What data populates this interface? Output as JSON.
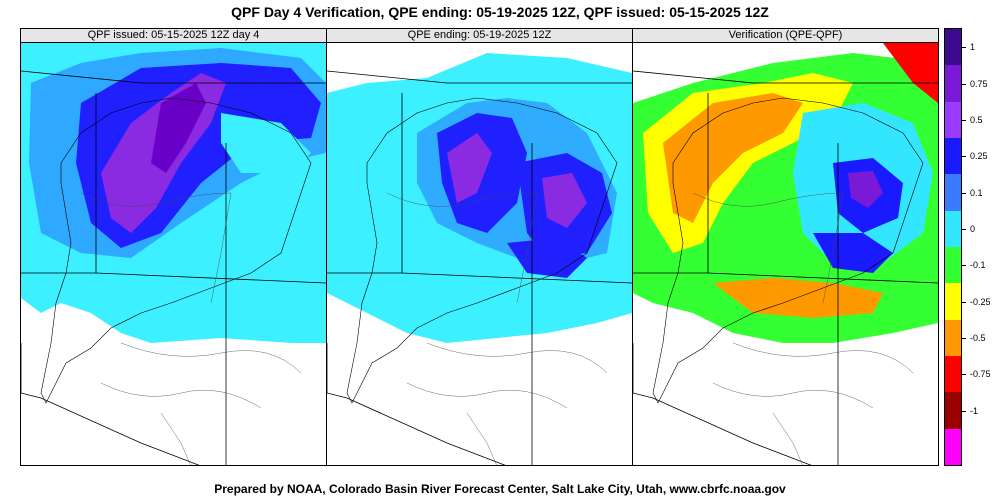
{
  "title": "QPF Day 4 Verification, QPE ending: 05-19-2025 12Z, QPF issued: 05-15-2025 12Z",
  "panels": [
    {
      "header": "QPF issued: 05-15-2025 12Z day 4"
    },
    {
      "header": "QPE ending: 05-19-2025 12Z"
    },
    {
      "header": "Verification (QPE-QPF)"
    }
  ],
  "legend": {
    "labels": [
      "1",
      "0.75",
      "0.5",
      "0.25",
      "0.1",
      "0",
      "-0.1",
      "-0.25",
      "-0.5",
      "-0.75",
      "-1"
    ],
    "colors": [
      "#3c0a8c",
      "#7a1ad6",
      "#9a3cff",
      "#1a1aff",
      "#3c7aff",
      "#33e6ff",
      "#33ff33",
      "#ffff00",
      "#ff9900",
      "#ff0000",
      "#990000",
      "#ff00ff"
    ]
  },
  "footer": "Prepared by NOAA, Colorado Basin River Forecast Center, Salt Lake City, Utah, www.cbrfc.noaa.gov"
}
